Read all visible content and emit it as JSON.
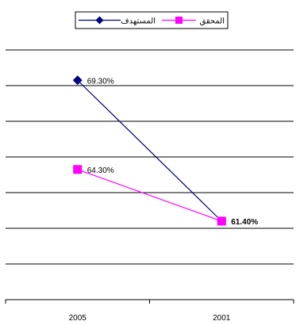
{
  "chart_data": {
    "type": "line",
    "title": "",
    "xlabel": "",
    "ylabel": "",
    "categories": [
      "2005",
      "2001"
    ],
    "ylim": [
      0.57,
      0.71
    ],
    "grid": true,
    "legend_position": "top",
    "series": [
      {
        "name": "المستهدف",
        "color": "#000080",
        "marker": "diamond",
        "values": [
          0.693,
          0.614
        ],
        "labels": [
          "69.30%",
          ""
        ]
      },
      {
        "name": "المحقق",
        "color": "#FF00FF",
        "marker": "square",
        "values": [
          0.643,
          0.614
        ],
        "labels": [
          "64.30%",
          "61.40%"
        ]
      }
    ]
  }
}
